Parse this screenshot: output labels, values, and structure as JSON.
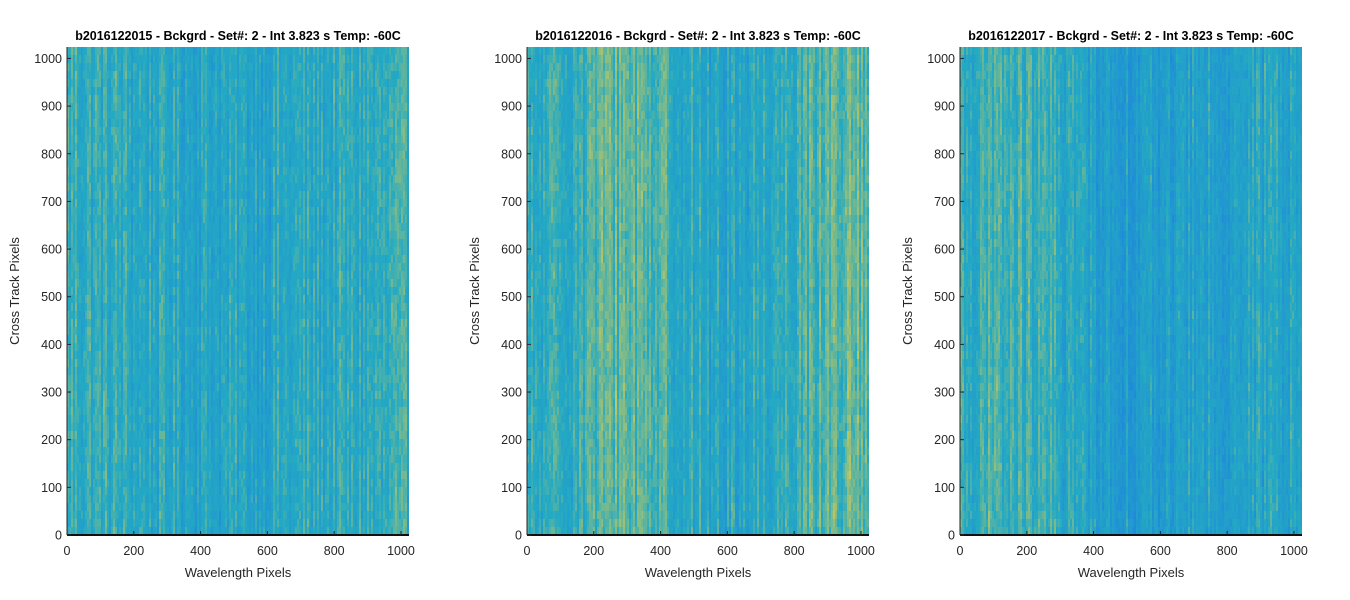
{
  "colors": {
    "low": "#1f8ad8",
    "mid": "#24aac3",
    "high": "#c9c85a",
    "axis": "#262626"
  },
  "chart_data": [
    {
      "type": "heatmap",
      "title": "b2016122015 - Bckgrd - Set#: 2 - Int 3.823 s Temp: -60C",
      "xlabel": "Wavelength Pixels",
      "ylabel": "Cross Track Pixels",
      "xlim": [
        0,
        1024
      ],
      "ylim": [
        0,
        1024
      ],
      "xticks": [
        0,
        200,
        400,
        600,
        800,
        1000
      ],
      "yticks": [
        0,
        100,
        200,
        300,
        400,
        500,
        600,
        700,
        800,
        900,
        1000
      ],
      "column_intensity_profile": [
        0.55,
        0.52,
        0.48,
        0.45,
        0.43,
        0.42,
        0.42,
        0.44,
        0.45,
        0.47,
        0.5,
        0.52
      ]
    },
    {
      "type": "heatmap",
      "title": "b2016122016 - Bckgrd - Set#: 2 - Int 3.823 s Temp: -60C",
      "xlabel": "Wavelength Pixels",
      "ylabel": "Cross Track Pixels",
      "xlim": [
        0,
        1024
      ],
      "ylim": [
        0,
        1024
      ],
      "xticks": [
        0,
        200,
        400,
        600,
        800,
        1000
      ],
      "yticks": [
        0,
        100,
        200,
        300,
        400,
        500,
        600,
        700,
        800,
        900,
        1000
      ],
      "column_intensity_profile": [
        0.45,
        0.5,
        0.6,
        0.7,
        0.66,
        0.5,
        0.4,
        0.42,
        0.5,
        0.62,
        0.68,
        0.66
      ]
    },
    {
      "type": "heatmap",
      "title": "b2016122017 - Bckgrd - Set#: 2 - Int 3.823 s Temp: -60C",
      "xlabel": "Wavelength Pixels",
      "ylabel": "Cross Track Pixels",
      "xlim": [
        0,
        1024
      ],
      "ylim": [
        0,
        1024
      ],
      "xticks": [
        0,
        200,
        400,
        600,
        800,
        1000
      ],
      "yticks": [
        0,
        100,
        200,
        300,
        400,
        500,
        600,
        700,
        800,
        900,
        1000
      ],
      "column_intensity_profile": [
        0.52,
        0.55,
        0.55,
        0.5,
        0.4,
        0.3,
        0.28,
        0.32,
        0.35,
        0.38,
        0.4,
        0.42
      ]
    }
  ]
}
